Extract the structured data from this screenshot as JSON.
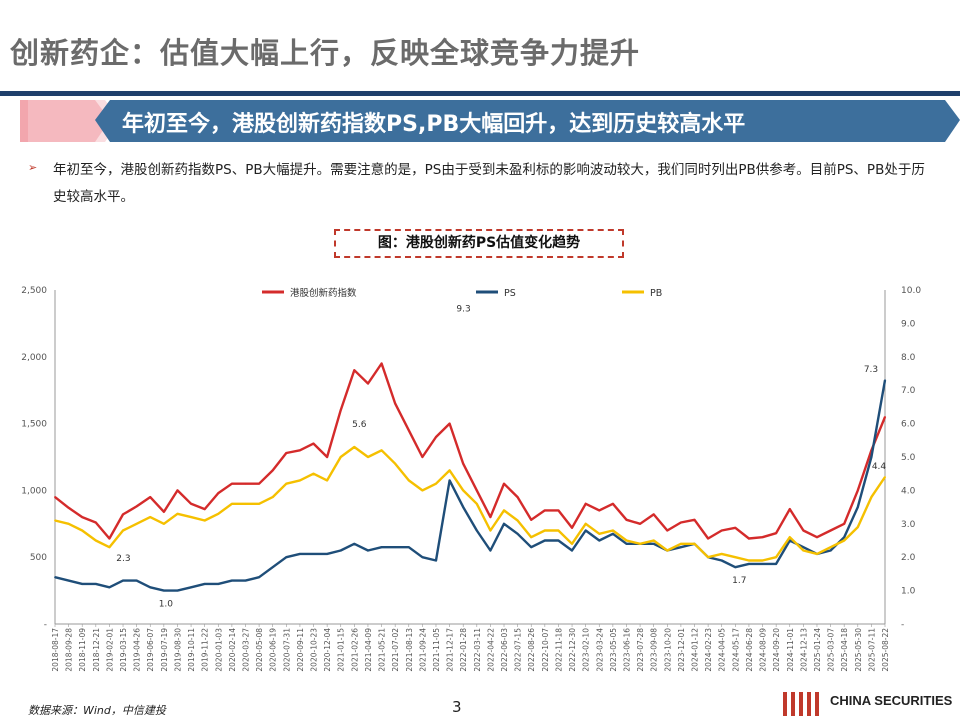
{
  "page": {
    "title": "创新药企：估值大幅上行，反映全球竞争力提升",
    "banner": "年初至今，港股创新药指数PS,PB大幅回升，达到历史较高水平",
    "bullet_icon": "arrow-bullet-icon",
    "paragraph": "年初至今，港股创新药指数PS、PB大幅提升。需要注意的是，PS由于受到未盈利标的影响波动较大，我们同时列出PB供参考。目前PS、PB处于历史较高水平。",
    "figure_caption": "图：港股创新药PS估值变化趋势",
    "source": "数据来源：Wind，中信建投",
    "page_number": "3",
    "logo_text": "CHINA SECURITIES",
    "colors": {
      "accent_red": "#d42b2b",
      "navy": "#1f3f6b",
      "banner_blue": "#3d6f9c",
      "banner_pink": "#f2a6ad"
    }
  },
  "chart_data": {
    "type": "line",
    "x_ticks": [
      "2018-08-17",
      "2018-09-28",
      "2018-11-09",
      "2018-12-21",
      "2019-02-01",
      "2019-03-15",
      "2019-04-26",
      "2019-06-07",
      "2019-07-19",
      "2019-08-30",
      "2019-10-11",
      "2019-11-22",
      "2020-01-03",
      "2020-02-14",
      "2020-03-27",
      "2020-05-08",
      "2020-06-19",
      "2020-07-31",
      "2020-09-11",
      "2020-10-23",
      "2020-12-04",
      "2021-01-15",
      "2021-02-26",
      "2021-04-09",
      "2021-05-21",
      "2021-07-02",
      "2021-08-13",
      "2021-09-24",
      "2021-11-05",
      "2021-12-17",
      "2022-01-28",
      "2022-03-11",
      "2022-04-22",
      "2022-06-03",
      "2022-07-15",
      "2022-08-26",
      "2022-10-07",
      "2022-11-18",
      "2022-12-30",
      "2023-02-10",
      "2023-03-24",
      "2023-05-05",
      "2023-06-16",
      "2023-07-28",
      "2023-09-08",
      "2023-10-20",
      "2023-12-01",
      "2024-01-12",
      "2024-02-23",
      "2024-04-05",
      "2024-05-17",
      "2024-06-28",
      "2024-08-09",
      "2024-09-20",
      "2024-11-01",
      "2024-12-13",
      "2025-01-24",
      "2025-03-07",
      "2025-04-18",
      "2025-05-30",
      "2025-07-11",
      "2025-08-22"
    ],
    "y_left": {
      "ticks": [
        "-",
        "500",
        "1,000",
        "1,500",
        "2,000",
        "2,500"
      ],
      "range": [
        0,
        2500
      ]
    },
    "y_right": {
      "ticks": [
        "-",
        "1.0",
        "2.0",
        "3.0",
        "4.0",
        "5.0",
        "6.0",
        "7.0",
        "8.0",
        "9.0",
        "10.0"
      ],
      "range": [
        0,
        10
      ]
    },
    "legend_position": "top",
    "series": [
      {
        "name": "港股创新药指数",
        "axis": "left",
        "color": "#d42b2b",
        "values": [
          950,
          870,
          800,
          760,
          640,
          820,
          880,
          950,
          840,
          1000,
          900,
          860,
          980,
          1050,
          1050,
          1050,
          1150,
          1280,
          1300,
          1350,
          1250,
          1600,
          1900,
          1800,
          1950,
          1650,
          1450,
          1250,
          1400,
          1500,
          1200,
          1000,
          800,
          1050,
          950,
          780,
          850,
          850,
          720,
          900,
          850,
          900,
          780,
          750,
          820,
          700,
          760,
          780,
          640,
          700,
          720,
          640,
          650,
          680,
          860,
          700,
          650,
          700,
          750,
          1000,
          1300,
          1550
        ]
      },
      {
        "name": "PS",
        "axis": "right",
        "color": "#1f4e79",
        "values": [
          1.4,
          1.3,
          1.2,
          1.2,
          1.1,
          1.3,
          1.3,
          1.1,
          1.0,
          1.0,
          1.1,
          1.2,
          1.2,
          1.3,
          1.3,
          1.4,
          1.7,
          2.0,
          2.1,
          2.1,
          2.1,
          2.2,
          2.4,
          2.2,
          2.3,
          2.3,
          2.3,
          2.0,
          1.9,
          4.3,
          3.5,
          2.8,
          2.2,
          3.0,
          2.7,
          2.3,
          2.5,
          2.5,
          2.2,
          2.8,
          2.5,
          2.7,
          2.4,
          2.4,
          2.4,
          2.2,
          2.3,
          2.4,
          2.0,
          1.9,
          1.7,
          1.8,
          1.8,
          1.8,
          2.5,
          2.3,
          2.1,
          2.2,
          2.6,
          3.5,
          5.0,
          7.3
        ]
      },
      {
        "name": "PB",
        "axis": "right",
        "color": "#f5c000",
        "values": [
          3.1,
          3.0,
          2.8,
          2.5,
          2.3,
          2.8,
          3.0,
          3.2,
          3.0,
          3.3,
          3.2,
          3.1,
          3.3,
          3.6,
          3.6,
          3.6,
          3.8,
          4.2,
          4.3,
          4.5,
          4.3,
          5.0,
          5.3,
          5.0,
          5.2,
          4.8,
          4.3,
          4.0,
          4.2,
          4.6,
          4.0,
          3.6,
          2.8,
          3.4,
          3.1,
          2.6,
          2.8,
          2.8,
          2.4,
          3.0,
          2.7,
          2.8,
          2.5,
          2.4,
          2.5,
          2.2,
          2.4,
          2.4,
          2.0,
          2.1,
          2.0,
          1.9,
          1.9,
          2.0,
          2.6,
          2.2,
          2.1,
          2.3,
          2.5,
          2.9,
          3.8,
          4.4
        ]
      }
    ],
    "annotations": [
      "9.3",
      "5.6",
      "2.3",
      "1.0",
      "1.7",
      "7.3",
      "4.4"
    ]
  }
}
